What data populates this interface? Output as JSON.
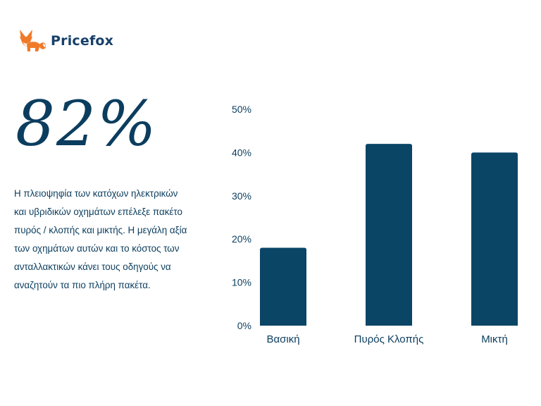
{
  "brand": {
    "name": "Pricefox",
    "accent_color": "#f07a2a",
    "text_color": "#17406a",
    "logo_icon": "fox-icon"
  },
  "headline_stat": "82%",
  "description": "Η πλειοψηφία των κατόχων ηλεκτρικών\nκαι υβριδικών οχημάτων επέλεξε πακέτο\nπυρός / κλοπής και μικτής.  Η μεγάλη αξία\nτων οχημάτων αυτών και το κόστος  των\nανταλλακτικών κάνει τους οδηγούς να\nαναζητούν τα πιο πλήρη πακέτα.",
  "chart_data": {
    "type": "bar",
    "categories": [
      "Βασική",
      "Πυρός Κλοπής",
      "Μικτή"
    ],
    "values": [
      18,
      42,
      40
    ],
    "unit": "%",
    "ylim": [
      0,
      50
    ],
    "yticks": [
      0,
      10,
      20,
      30,
      40,
      50
    ],
    "title": "",
    "xlabel": "",
    "ylabel": "",
    "grid": false,
    "bar_color": "#0b4566"
  }
}
